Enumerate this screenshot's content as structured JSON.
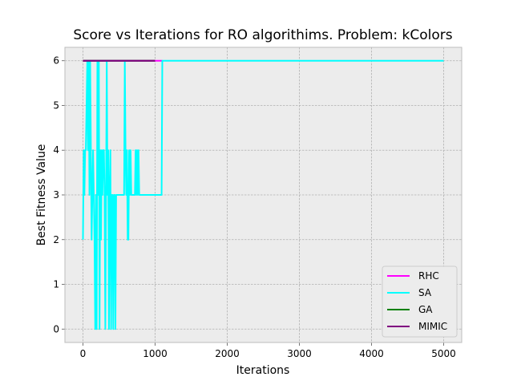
{
  "chart_data": {
    "type": "line",
    "title": "Score vs Iterations for RO algorithims.  Problem: kColors",
    "xlabel": "Iterations",
    "ylabel": "Best Fitness Value",
    "xlim": [
      -250,
      5250
    ],
    "ylim": [
      -0.3,
      6.3
    ],
    "xticks": [
      0,
      1000,
      2000,
      3000,
      4000,
      5000
    ],
    "yticks": [
      0,
      1,
      2,
      3,
      4,
      5,
      6
    ],
    "grid": true,
    "legend_position": "lower-right",
    "series": [
      {
        "name": "RHC",
        "color": "#ff00ff",
        "x": [
          0,
          1100
        ],
        "y": [
          6,
          6
        ]
      },
      {
        "name": "SA",
        "color": "#00ffff",
        "x": [
          0,
          10,
          20,
          30,
          40,
          60,
          70,
          80,
          90,
          100,
          110,
          120,
          130,
          140,
          150,
          160,
          170,
          180,
          190,
          200,
          210,
          220,
          230,
          240,
          250,
          260,
          270,
          280,
          290,
          300,
          310,
          320,
          330,
          340,
          350,
          360,
          370,
          380,
          390,
          400,
          410,
          420,
          430,
          440,
          450,
          460,
          470,
          480,
          490,
          500,
          510,
          520,
          530,
          540,
          550,
          560,
          570,
          580,
          590,
          600,
          610,
          620,
          630,
          640,
          650,
          660,
          670,
          680,
          690,
          700,
          710,
          720,
          730,
          740,
          750,
          760,
          770,
          780,
          790,
          800,
          810,
          820,
          830,
          840,
          850,
          900,
          1000,
          1090,
          1100,
          3100,
          5000
        ],
        "y": [
          2,
          4,
          3,
          4,
          4,
          6,
          4,
          6,
          3,
          6,
          4,
          2,
          3,
          4,
          3,
          2,
          0,
          3,
          0,
          6,
          3,
          6,
          0,
          4,
          2,
          4,
          3,
          4,
          4,
          3,
          0,
          3,
          6,
          3,
          4,
          0,
          3,
          4,
          0,
          3,
          3,
          0,
          3,
          3,
          0,
          3,
          3,
          3,
          3,
          3,
          3,
          3,
          3,
          3,
          3,
          3,
          3,
          6,
          4,
          3,
          4,
          2,
          2,
          4,
          3,
          4,
          3,
          3,
          3,
          3,
          3,
          3,
          4,
          3,
          4,
          3,
          4,
          3,
          3,
          3,
          3,
          3,
          3,
          3,
          3,
          3,
          3,
          3,
          6,
          6,
          6
        ]
      },
      {
        "name": "GA",
        "color": "#008000",
        "x": [
          0,
          1000
        ],
        "y": [
          6,
          6
        ]
      },
      {
        "name": "MIMIC",
        "color": "#800080",
        "x": [
          0,
          1000
        ],
        "y": [
          6,
          6
        ]
      }
    ]
  }
}
